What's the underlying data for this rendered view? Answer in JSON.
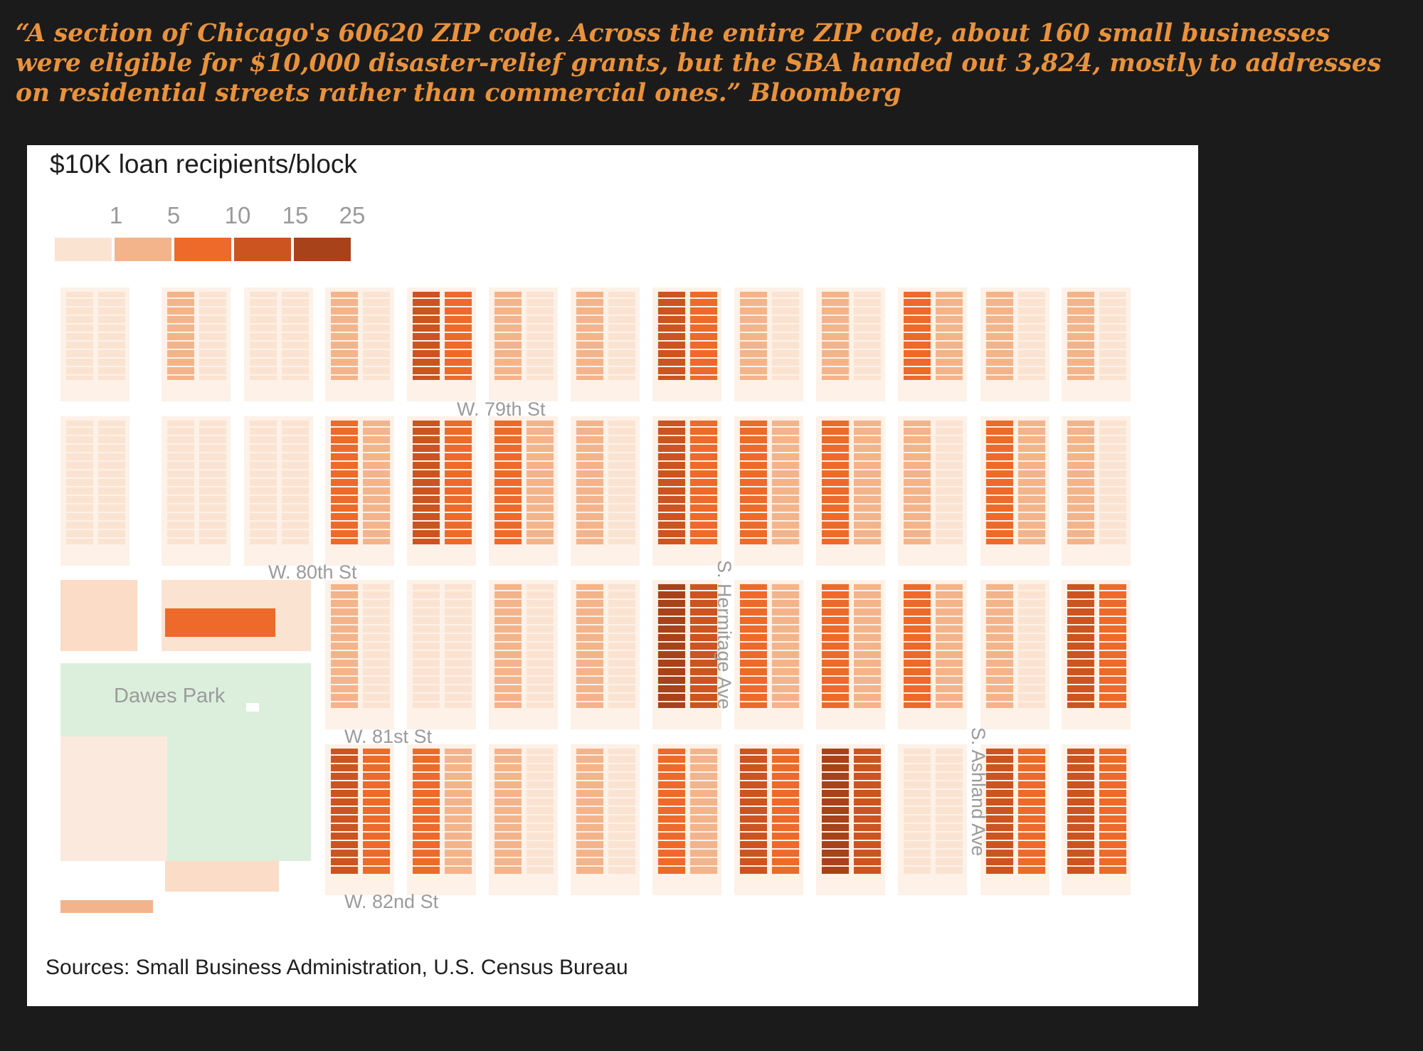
{
  "quote": "“A section of Chicago's 60620 ZIP code. Across the entire ZIP code, about 160 small businesses were eligible for $10,000 disaster-relief grants, but the SBA handed out 3,824, mostly to addresses on residential streets rather than commercial ones.” Bloomberg",
  "legend": {
    "title": "$10K loan recipients/block",
    "ticks": [
      "1",
      "5",
      "10",
      "15",
      "25"
    ],
    "colors": [
      "#fbe3d2",
      "#f3b48b",
      "#ee6a2a",
      "#cc5420",
      "#a8421a"
    ]
  },
  "map": {
    "street_labels": {
      "w79": "W. 79th St",
      "w80": "W. 80th St",
      "w81": "W. 81st St",
      "w82": "W. 82nd St",
      "hermitage": "S. Hermitage Ave",
      "ashland": "S. Ashland Ave"
    },
    "park_label": "Dawes Park",
    "park_color": "#dbefdc",
    "block_classes": [
      [
        0,
        1,
        0,
        1,
        3,
        1,
        1,
        3,
        1,
        1,
        2,
        1,
        1
      ],
      [
        0,
        0,
        0,
        2,
        3,
        2,
        1,
        3,
        2,
        2,
        1,
        2,
        1
      ],
      [
        0,
        0,
        1,
        1,
        0,
        1,
        1,
        4,
        2,
        2,
        2,
        1,
        3
      ],
      [
        0,
        0,
        1,
        3,
        2,
        1,
        1,
        2,
        3,
        4,
        0,
        3,
        3
      ]
    ]
  },
  "sources": "Sources: Small Business Administration, U.S. Census Bureau"
}
